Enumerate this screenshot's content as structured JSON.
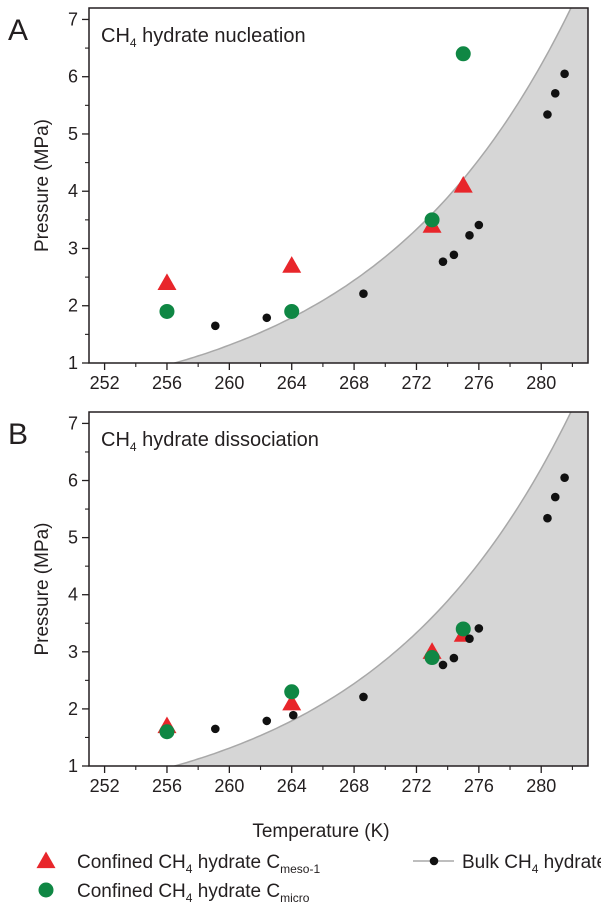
{
  "colors": {
    "meso": "#e8262b",
    "micro": "#0f8744",
    "bulk": "#111111",
    "curve": "#a8a8a8",
    "fill": "#d6d6d6",
    "axis": "#231f20"
  },
  "chart_data": [
    {
      "panel": "A",
      "type": "scatter",
      "title": {
        "main": "CH",
        "sub": "4",
        "rest": " hydrate nucleation"
      },
      "xlabel": "",
      "ylabel": "Pressure (MPa)",
      "xlim": [
        251,
        283
      ],
      "ylim": [
        1,
        7.2
      ],
      "xticks": [
        252,
        256,
        260,
        264,
        268,
        272,
        276,
        280
      ],
      "yticks": [
        1,
        2,
        3,
        4,
        5,
        6,
        7
      ],
      "series": [
        {
          "key": "meso",
          "marker": "triangle",
          "points": [
            [
              256,
              2.4
            ],
            [
              264,
              2.7
            ],
            [
              273,
              3.4
            ],
            [
              275,
              4.1
            ]
          ]
        },
        {
          "key": "micro",
          "marker": "circle",
          "points": [
            [
              256,
              1.9
            ],
            [
              264,
              1.9
            ],
            [
              273,
              3.5
            ],
            [
              275,
              6.4
            ]
          ]
        },
        {
          "key": "bulk",
          "marker": "dot",
          "points": [
            [
              259.1,
              1.65
            ],
            [
              262.4,
              1.79
            ],
            [
              268.6,
              2.21
            ],
            [
              273.7,
              2.77
            ],
            [
              274.4,
              2.89
            ],
            [
              275.4,
              3.23
            ],
            [
              276,
              3.41
            ],
            [
              280.4,
              5.34
            ],
            [
              280.9,
              5.71
            ],
            [
              281.5,
              6.05
            ]
          ]
        }
      ]
    },
    {
      "panel": "B",
      "type": "scatter",
      "title": {
        "main": "CH",
        "sub": "4",
        "rest": " hydrate dissociation"
      },
      "xlabel": "Temperature (K)",
      "ylabel": "Pressure (MPa)",
      "xlim": [
        251,
        283
      ],
      "ylim": [
        1,
        7.2
      ],
      "xticks": [
        252,
        256,
        260,
        264,
        268,
        272,
        276,
        280
      ],
      "yticks": [
        1,
        2,
        3,
        4,
        5,
        6,
        7
      ],
      "series": [
        {
          "key": "meso",
          "marker": "triangle",
          "points": [
            [
              256,
              1.7
            ],
            [
              264,
              2.1
            ],
            [
              273,
              3.0
            ],
            [
              275,
              3.3
            ]
          ]
        },
        {
          "key": "micro",
          "marker": "circle",
          "points": [
            [
              256,
              1.6
            ],
            [
              264,
              2.3
            ],
            [
              273,
              2.9
            ],
            [
              275,
              3.4
            ]
          ]
        },
        {
          "key": "bulk",
          "marker": "dot",
          "points": [
            [
              259.1,
              1.65
            ],
            [
              262.4,
              1.79
            ],
            [
              264.1,
              1.89
            ],
            [
              268.6,
              2.21
            ],
            [
              273.7,
              2.77
            ],
            [
              274.4,
              2.89
            ],
            [
              275.4,
              3.23
            ],
            [
              276,
              3.41
            ],
            [
              280.4,
              5.34
            ],
            [
              280.9,
              5.71
            ],
            [
              281.5,
              6.05
            ]
          ]
        }
      ]
    }
  ],
  "curve_model": {
    "ln_p_a": -19.93,
    "ln_p_b": 0.0777
  },
  "legend": {
    "placement": "bottom",
    "items": [
      {
        "key": "meso",
        "marker": "triangle",
        "main": "Confined CH",
        "sub1": "4",
        "mid": " hydrate C",
        "sub2": "meso-1"
      },
      {
        "key": "micro",
        "marker": "circle",
        "main": "Confined CH",
        "sub1": "4",
        "mid": " hydrate C",
        "sub2": "micro"
      },
      {
        "key": "bulk",
        "marker": "line-dot",
        "main": "Bulk CH",
        "sub1": "4",
        "mid": " hydrate",
        "sub2": ""
      }
    ]
  }
}
